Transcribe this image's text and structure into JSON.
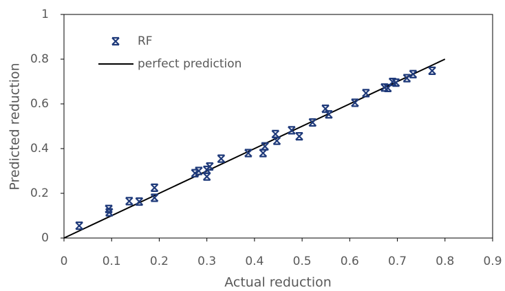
{
  "chart_data": {
    "type": "scatter",
    "x_label": "Actual reduction",
    "y_label": "Predicted reduction",
    "xlim": [
      0,
      0.9
    ],
    "ylim": [
      0,
      1
    ],
    "xticks": [
      0,
      0.1,
      0.2,
      0.3,
      0.4,
      0.5,
      0.6,
      0.7,
      0.8,
      0.9
    ],
    "yticks": [
      0,
      0.2,
      0.4,
      0.6,
      0.8,
      1
    ],
    "legend": "upper-left",
    "series": [
      {
        "name": "RF",
        "color": "#1f3a7a",
        "mode": "markers",
        "x": [
          0.032,
          0.094,
          0.095,
          0.137,
          0.158,
          0.19,
          0.19,
          0.275,
          0.283,
          0.3,
          0.3,
          0.306,
          0.33,
          0.387,
          0.418,
          0.422,
          0.444,
          0.447,
          0.478,
          0.494,
          0.522,
          0.549,
          0.556,
          0.611,
          0.634,
          0.673,
          0.68,
          0.69,
          0.697,
          0.72,
          0.733,
          0.773
        ],
        "values": [
          0.055,
          0.13,
          0.115,
          0.165,
          0.163,
          0.225,
          0.18,
          0.29,
          0.3,
          0.275,
          0.305,
          0.32,
          0.355,
          0.38,
          0.38,
          0.41,
          0.465,
          0.435,
          0.482,
          0.455,
          0.517,
          0.578,
          0.553,
          0.605,
          0.648,
          0.673,
          0.671,
          0.698,
          0.695,
          0.715,
          0.733,
          0.748
        ]
      },
      {
        "name": "perfect prediction",
        "color": "#000000",
        "mode": "line",
        "x": [
          0,
          0.8
        ],
        "values": [
          0,
          0.8
        ]
      }
    ]
  }
}
